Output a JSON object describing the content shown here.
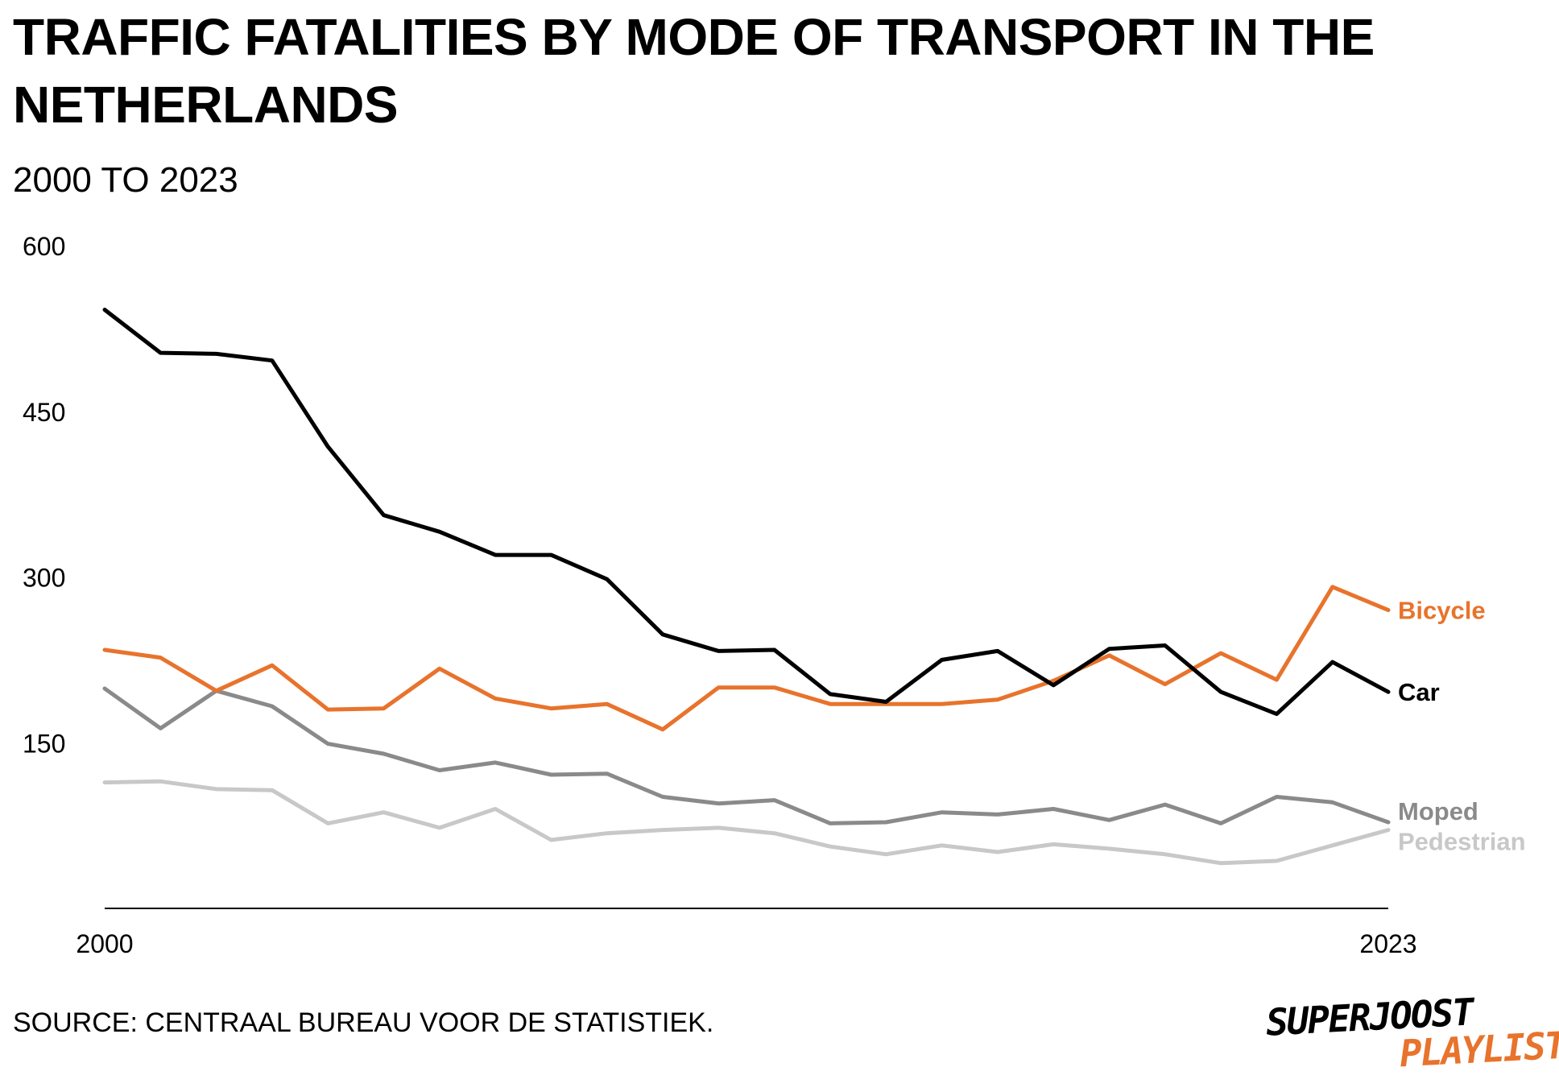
{
  "title": "TRAFFIC FATALITIES BY MODE OF TRANSPORT IN THE NETHERLANDS",
  "subtitle": "2000 TO 2023",
  "source": "SOURCE: CENTRAAL BUREAU VOOR DE STATISTIEK.",
  "logo": {
    "line1": "SUPERJOOST",
    "line2": "PLAYLIST"
  },
  "chart_data": {
    "type": "line",
    "title": "TRAFFIC FATALITIES BY MODE OF TRANSPORT IN THE NETHERLANDS",
    "subtitle": "2000 TO 2023",
    "x": [
      2000,
      2001,
      2002,
      2003,
      2004,
      2005,
      2006,
      2007,
      2008,
      2009,
      2010,
      2011,
      2012,
      2013,
      2014,
      2015,
      2016,
      2017,
      2018,
      2019,
      2020,
      2021,
      2022,
      2023
    ],
    "xticks": [
      "2000",
      "2023"
    ],
    "yticks": [
      150,
      300,
      450,
      600
    ],
    "ylim": [
      0,
      600
    ],
    "xlim": [
      2000,
      2023
    ],
    "grid": false,
    "legend": "direct labels at line ends",
    "series": [
      {
        "name": "Car",
        "color": "#000000",
        "values": [
          542,
          503,
          502,
          496,
          418,
          356,
          341,
          320,
          320,
          298,
          248,
          233,
          234,
          194,
          187,
          225,
          233,
          202,
          235,
          238,
          196,
          176,
          223,
          196
        ]
      },
      {
        "name": "Bicycle",
        "color": "#e8732c",
        "values": [
          234,
          227,
          197,
          220,
          180,
          181,
          217,
          190,
          181,
          185,
          162,
          200,
          200,
          185,
          185,
          185,
          189,
          206,
          229,
          203,
          231,
          207,
          291,
          270
        ]
      },
      {
        "name": "Moped",
        "color": "#8a8a8a",
        "values": [
          199,
          163,
          197,
          183,
          149,
          140,
          125,
          132,
          121,
          122,
          101,
          95,
          98,
          77,
          78,
          87,
          85,
          90,
          80,
          94,
          77,
          101,
          96,
          78
        ]
      },
      {
        "name": "Pedestrian",
        "color": "#c8c8c8",
        "values": [
          114,
          115,
          108,
          107,
          77,
          87,
          73,
          90,
          62,
          68,
          71,
          73,
          68,
          56,
          49,
          57,
          51,
          58,
          54,
          49,
          41,
          43,
          57,
          71
        ]
      }
    ]
  }
}
